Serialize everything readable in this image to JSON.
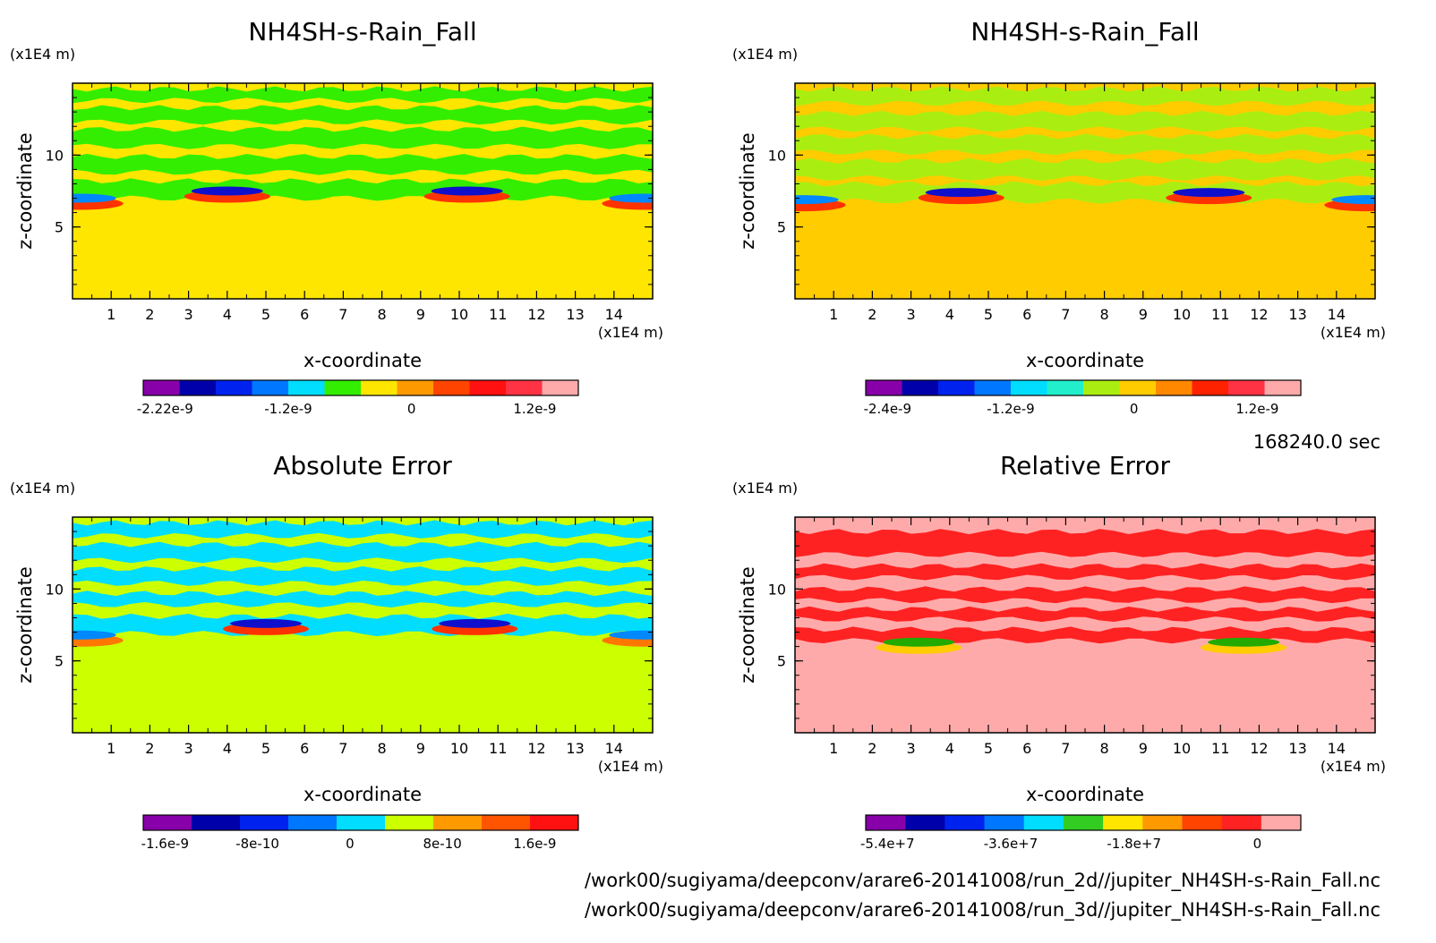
{
  "figure": {
    "timestamp": "168240.0 sec",
    "files": [
      "/work00/sugiyama/deepconv/arare6-20141008/run_2d//jupiter_NH4SH-s-Rain_Fall.nc",
      "/work00/sugiyama/deepconv/arare6-20141008/run_3d//jupiter_NH4SH-s-Rain_Fall.nc"
    ]
  },
  "chart_data": [
    {
      "type": "heatmap",
      "title": "NH4SH-s-Rain_Fall",
      "xlabel": "x-coordinate",
      "ylabel": "z-coordinate",
      "x_unit": "(x1E4 m)",
      "y_unit": "(x1E4 m)",
      "xlim": [
        0,
        15
      ],
      "ylim": [
        0,
        15
      ],
      "x_ticks": [
        "1",
        "2",
        "3",
        "4",
        "5",
        "6",
        "7",
        "8",
        "9",
        "10",
        "11",
        "12",
        "13",
        "14"
      ],
      "y_ticks": [
        "5",
        "10"
      ],
      "background_color": "#ffe600",
      "bands": [
        {
          "z": [
            13.8,
            14.6
          ],
          "color": "#33ee00"
        },
        {
          "z": [
            12.3,
            13.3
          ],
          "color": "#33ee00"
        },
        {
          "z": [
            10.6,
            11.8
          ],
          "color": "#33ee00"
        },
        {
          "z": [
            8.8,
            9.9
          ],
          "color": "#33ee00"
        },
        {
          "z": [
            7.0,
            8.2
          ],
          "color": "#33ee00"
        }
      ],
      "features": [
        {
          "x_center": 4.0,
          "z_center": 7.5,
          "color_core": "#1010cc",
          "color_edge": "#ff3300"
        },
        {
          "x_center": 10.2,
          "z_center": 7.5,
          "color_core": "#1010cc",
          "color_edge": "#ff3300"
        },
        {
          "x_center": 0.2,
          "z_center": 7.0,
          "color_core": "#0088ff",
          "color_edge": "#ff3300"
        },
        {
          "x_center": 14.8,
          "z_center": 7.0,
          "color_core": "#0088ff",
          "color_edge": "#ff3300"
        }
      ],
      "colorbar": {
        "colors": [
          "#8800aa",
          "#0000aa",
          "#0022ee",
          "#0077ff",
          "#00ddff",
          "#33ee00",
          "#ffe600",
          "#ff9900",
          "#ff4400",
          "#ff1111",
          "#ff3344",
          "#ffaaaa"
        ],
        "labels": [
          "-2.22e-9",
          "-1.2e-9",
          "0",
          "1.2e-9"
        ]
      }
    },
    {
      "type": "heatmap",
      "title": "NH4SH-s-Rain_Fall",
      "xlabel": "x-coordinate",
      "ylabel": "z-coordinate",
      "x_unit": "(x1E4 m)",
      "y_unit": "(x1E4 m)",
      "xlim": [
        0,
        15
      ],
      "ylim": [
        0,
        15
      ],
      "x_ticks": [
        "1",
        "2",
        "3",
        "4",
        "5",
        "6",
        "7",
        "8",
        "9",
        "10",
        "11",
        "12",
        "13",
        "14"
      ],
      "y_ticks": [
        "5",
        "10"
      ],
      "background_color": "#ffcc00",
      "bands": [
        {
          "z": [
            13.6,
            14.6
          ],
          "color": "#aaee11"
        },
        {
          "z": [
            11.8,
            12.9
          ],
          "color": "#aaee11"
        },
        {
          "z": [
            10.2,
            11.3
          ],
          "color": "#aaee11"
        },
        {
          "z": [
            8.4,
            9.6
          ],
          "color": "#aaee11"
        },
        {
          "z": [
            6.8,
            8.0
          ],
          "color": "#aaee11"
        }
      ],
      "features": [
        {
          "x_center": 4.3,
          "z_center": 7.4,
          "color_core": "#1010cc",
          "color_edge": "#ff3300"
        },
        {
          "x_center": 10.7,
          "z_center": 7.4,
          "color_core": "#1010cc",
          "color_edge": "#ff3300"
        },
        {
          "x_center": 0.2,
          "z_center": 6.9,
          "color_core": "#0088ff",
          "color_edge": "#ff3300"
        },
        {
          "x_center": 14.8,
          "z_center": 6.9,
          "color_core": "#0088ff",
          "color_edge": "#ff3300"
        }
      ],
      "colorbar": {
        "colors": [
          "#8800aa",
          "#0000aa",
          "#0022ee",
          "#0077ff",
          "#00ddff",
          "#22eecc",
          "#aaee11",
          "#ffcc00",
          "#ff8800",
          "#ff2200",
          "#ff3344",
          "#ffaaaa"
        ],
        "labels": [
          "-2.4e-9",
          "-1.2e-9",
          "0",
          "1.2e-9"
        ]
      }
    },
    {
      "type": "heatmap",
      "title": "Absolute Error",
      "xlabel": "x-coordinate",
      "ylabel": "z-coordinate",
      "x_unit": "(x1E4 m)",
      "y_unit": "(x1E4 m)",
      "xlim": [
        0,
        15
      ],
      "ylim": [
        0,
        15
      ],
      "x_ticks": [
        "1",
        "2",
        "3",
        "4",
        "5",
        "6",
        "7",
        "8",
        "9",
        "10",
        "11",
        "12",
        "13",
        "14"
      ],
      "y_ticks": [
        "5",
        "10"
      ],
      "background_color": "#ccff00",
      "bands": [
        {
          "z": [
            13.7,
            14.6
          ],
          "color": "#00ddff"
        },
        {
          "z": [
            12.0,
            13.1
          ],
          "color": "#00ddff"
        },
        {
          "z": [
            10.4,
            11.4
          ],
          "color": "#00ddff"
        },
        {
          "z": [
            8.9,
            9.7
          ],
          "color": "#00ddff"
        },
        {
          "z": [
            6.9,
            8.1
          ],
          "color": "#00ddff"
        }
      ],
      "features": [
        {
          "x_center": 5.0,
          "z_center": 7.6,
          "color_core": "#1010cc",
          "color_edge": "#ff3300"
        },
        {
          "x_center": 10.4,
          "z_center": 7.6,
          "color_core": "#1010cc",
          "color_edge": "#ff3300"
        },
        {
          "x_center": 0.2,
          "z_center": 6.8,
          "color_core": "#0088ff",
          "color_edge": "#ff7700"
        },
        {
          "x_center": 14.8,
          "z_center": 6.8,
          "color_core": "#0088ff",
          "color_edge": "#ff7700"
        }
      ],
      "colorbar": {
        "colors": [
          "#8800aa",
          "#0000aa",
          "#0022ee",
          "#0077ff",
          "#00ddff",
          "#ccff00",
          "#ff9900",
          "#ff5500",
          "#ff1111"
        ],
        "labels": [
          "-1.6e-9",
          "-8e-10",
          "0",
          "8e-10",
          "1.6e-9"
        ]
      }
    },
    {
      "type": "heatmap",
      "title": "Relative Error",
      "xlabel": "x-coordinate",
      "ylabel": "z-coordinate",
      "x_unit": "(x1E4 m)",
      "y_unit": "(x1E4 m)",
      "xlim": [
        0,
        15
      ],
      "ylim": [
        0,
        15
      ],
      "x_ticks": [
        "1",
        "2",
        "3",
        "4",
        "5",
        "6",
        "7",
        "8",
        "9",
        "10",
        "11",
        "12",
        "13",
        "14"
      ],
      "y_ticks": [
        "5",
        "10"
      ],
      "background_color": "#ffaaaa",
      "bands": [
        {
          "z": [
            12.4,
            14.0
          ],
          "color": "#ff2222"
        },
        {
          "z": [
            10.8,
            11.6
          ],
          "color": "#ff2222"
        },
        {
          "z": [
            9.2,
            10.0
          ],
          "color": "#ff2222"
        },
        {
          "z": [
            7.9,
            8.6
          ],
          "color": "#ff2222"
        },
        {
          "z": [
            6.4,
            7.2
          ],
          "color": "#ff2222"
        }
      ],
      "features": [
        {
          "x_center": 3.2,
          "z_center": 6.3,
          "color_core": "#22aa00",
          "color_edge": "#ffcc00"
        },
        {
          "x_center": 11.6,
          "z_center": 6.3,
          "color_core": "#22aa00",
          "color_edge": "#ffcc00"
        }
      ],
      "colorbar": {
        "colors": [
          "#8800aa",
          "#0000aa",
          "#0022ee",
          "#0077ff",
          "#00ddff",
          "#33cc22",
          "#ffe600",
          "#ff9900",
          "#ff4400",
          "#ff2222",
          "#ffaaaa"
        ],
        "labels": [
          "-5.4e+7",
          "-3.6e+7",
          "-1.8e+7",
          "0"
        ]
      }
    }
  ]
}
